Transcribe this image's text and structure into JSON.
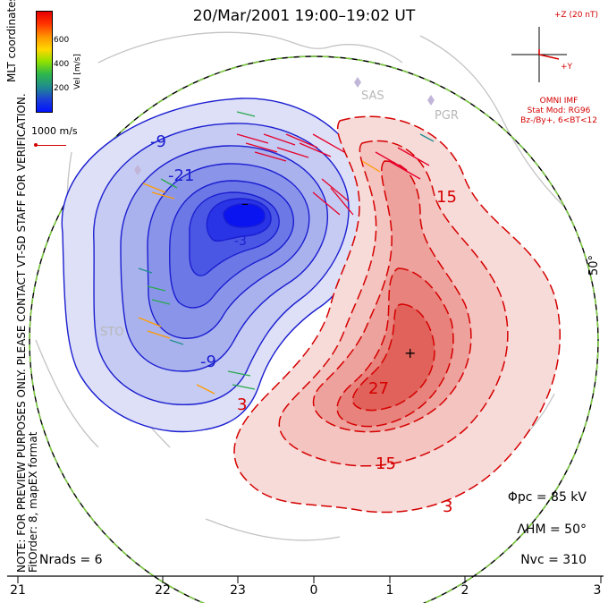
{
  "title": "20/Mar/2001 19:00–19:02 UT",
  "colorbar": {
    "ticks": [
      "600",
      "400",
      "200"
    ],
    "unit": "Vel [m/s]",
    "coordinates": "MLT coordinates"
  },
  "velocity_scale": "1000 m/s",
  "imf": {
    "z_label": "+Z (20 nT)",
    "y_label": "+Y",
    "lines": [
      "OMNI IMF",
      "Stat Mod: RG96",
      "Bz-/By+, 6<BT<12"
    ]
  },
  "note": [
    "NOTE: FOR PREVIEW PURPOSES ONLY. PLEASE CONTACT VT-SD STAFF FOR VERIFICATION.",
    "FitOrder: 8, mapEX format"
  ],
  "stats": {
    "phi": "Φpc = 85 kV",
    "lambda": "ΛHM = 50°",
    "nvc": "Nvc = 310",
    "nrads": "Nrads = 6"
  },
  "latitude_label": "50°",
  "stations": [
    "SAS",
    "PGR",
    "STO"
  ],
  "contour_labels": [
    "-9",
    "-21",
    "-9",
    "-3",
    "3",
    "15",
    "27",
    "15",
    "3"
  ],
  "mlt_labels": [
    "21",
    "22",
    "23",
    "0",
    "1",
    "2",
    "3"
  ],
  "markers": {
    "min": "–",
    "max": "+"
  },
  "colors": {
    "negative": "#1b1ed0",
    "positive": "#d50000",
    "vector_high": "#e8002a",
    "vector_low": "#2aa84e"
  }
}
